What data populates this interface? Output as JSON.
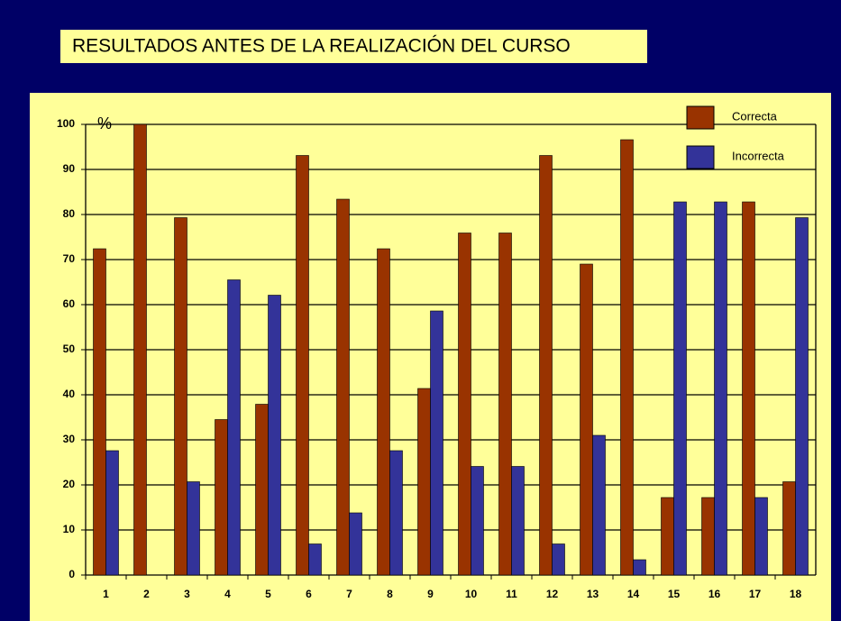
{
  "chart_data": {
    "type": "bar",
    "title": "RESULTADOS ANTES DE LA REALIZACIÓN DEL CURSO",
    "y_label": "%",
    "categories": [
      "1",
      "2",
      "3",
      "4",
      "5",
      "6",
      "7",
      "8",
      "9",
      "10",
      "11",
      "12",
      "13",
      "14",
      "15",
      "16",
      "17",
      "18"
    ],
    "series": [
      {
        "name": "Correcta",
        "color": "#993300",
        "values": [
          72.4,
          100,
          79.3,
          34.5,
          37.9,
          93.1,
          83.4,
          72.4,
          41.4,
          75.9,
          75.9,
          93.1,
          69,
          96.6,
          17.2,
          17.2,
          82.8,
          20.7
        ]
      },
      {
        "name": "Incorrecta",
        "color": "#333399",
        "values": [
          27.6,
          0,
          20.7,
          65.5,
          62.1,
          6.9,
          13.8,
          27.6,
          58.6,
          24.1,
          24.1,
          6.9,
          31,
          3.4,
          82.8,
          82.8,
          17.2,
          79.3
        ]
      }
    ],
    "ylim": [
      0,
      100
    ],
    "yticks": [
      0,
      10,
      20,
      30,
      40,
      50,
      60,
      70,
      80,
      90,
      100
    ],
    "grid": true,
    "legend": "top-right"
  }
}
